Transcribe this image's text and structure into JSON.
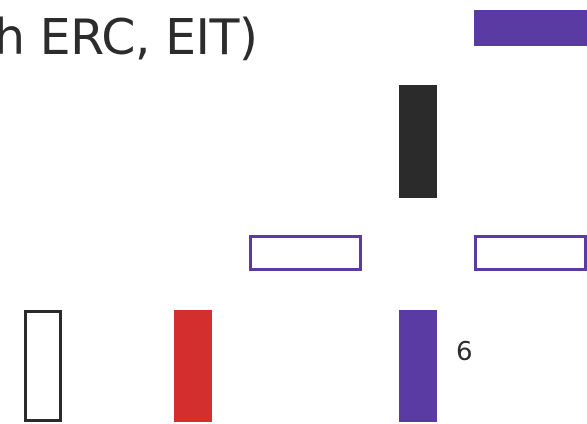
{
  "title": "h ERC, EIT)",
  "label_value": "6",
  "colors": {
    "purple": "#5a3aa3",
    "black": "#2b2b2b",
    "red": "#d42f2f"
  }
}
